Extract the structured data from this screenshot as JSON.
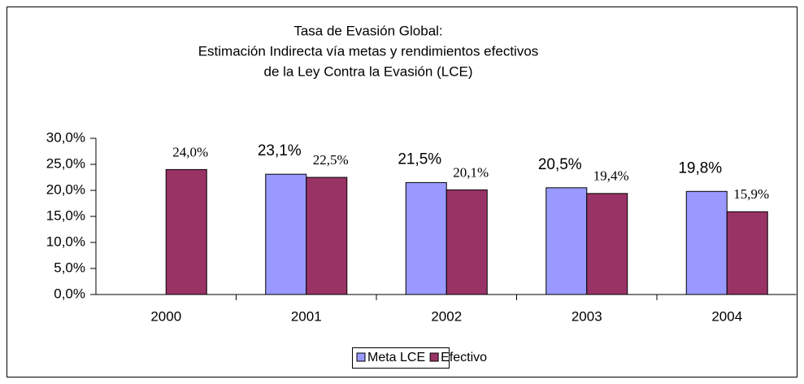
{
  "chart_data": {
    "type": "bar",
    "title": [
      "Tasa de Evasión Global:",
      "Estimación Indirecta vía metas y rendimientos efectivos",
      "de la Ley Contra la Evasión (LCE)"
    ],
    "categories": [
      "2000",
      "2001",
      "2002",
      "2003",
      "2004"
    ],
    "series": [
      {
        "name": "Meta LCE",
        "color": "#9999ff",
        "values": [
          null,
          23.1,
          21.5,
          20.5,
          19.8
        ],
        "value_labels": [
          null,
          "23,1%",
          "21,5%",
          "20,5%",
          "19,8%"
        ]
      },
      {
        "name": "Efectivo",
        "color": "#993366",
        "values": [
          24.0,
          22.5,
          20.1,
          19.4,
          15.9
        ],
        "value_labels": [
          "24,0%",
          "22,5%",
          "20,1%",
          "19,4%",
          "15,9%"
        ]
      }
    ],
    "ylim": [
      0,
      30
    ],
    "yticks": [
      {
        "value": 0,
        "label": "0,0%"
      },
      {
        "value": 5,
        "label": "5,0%"
      },
      {
        "value": 10,
        "label": "10,0%"
      },
      {
        "value": 15,
        "label": "15,0%"
      },
      {
        "value": 20,
        "label": "20,0%"
      },
      {
        "value": 25,
        "label": "25,0%"
      },
      {
        "value": 30,
        "label": "30,0%"
      }
    ],
    "legend": "bottom"
  }
}
